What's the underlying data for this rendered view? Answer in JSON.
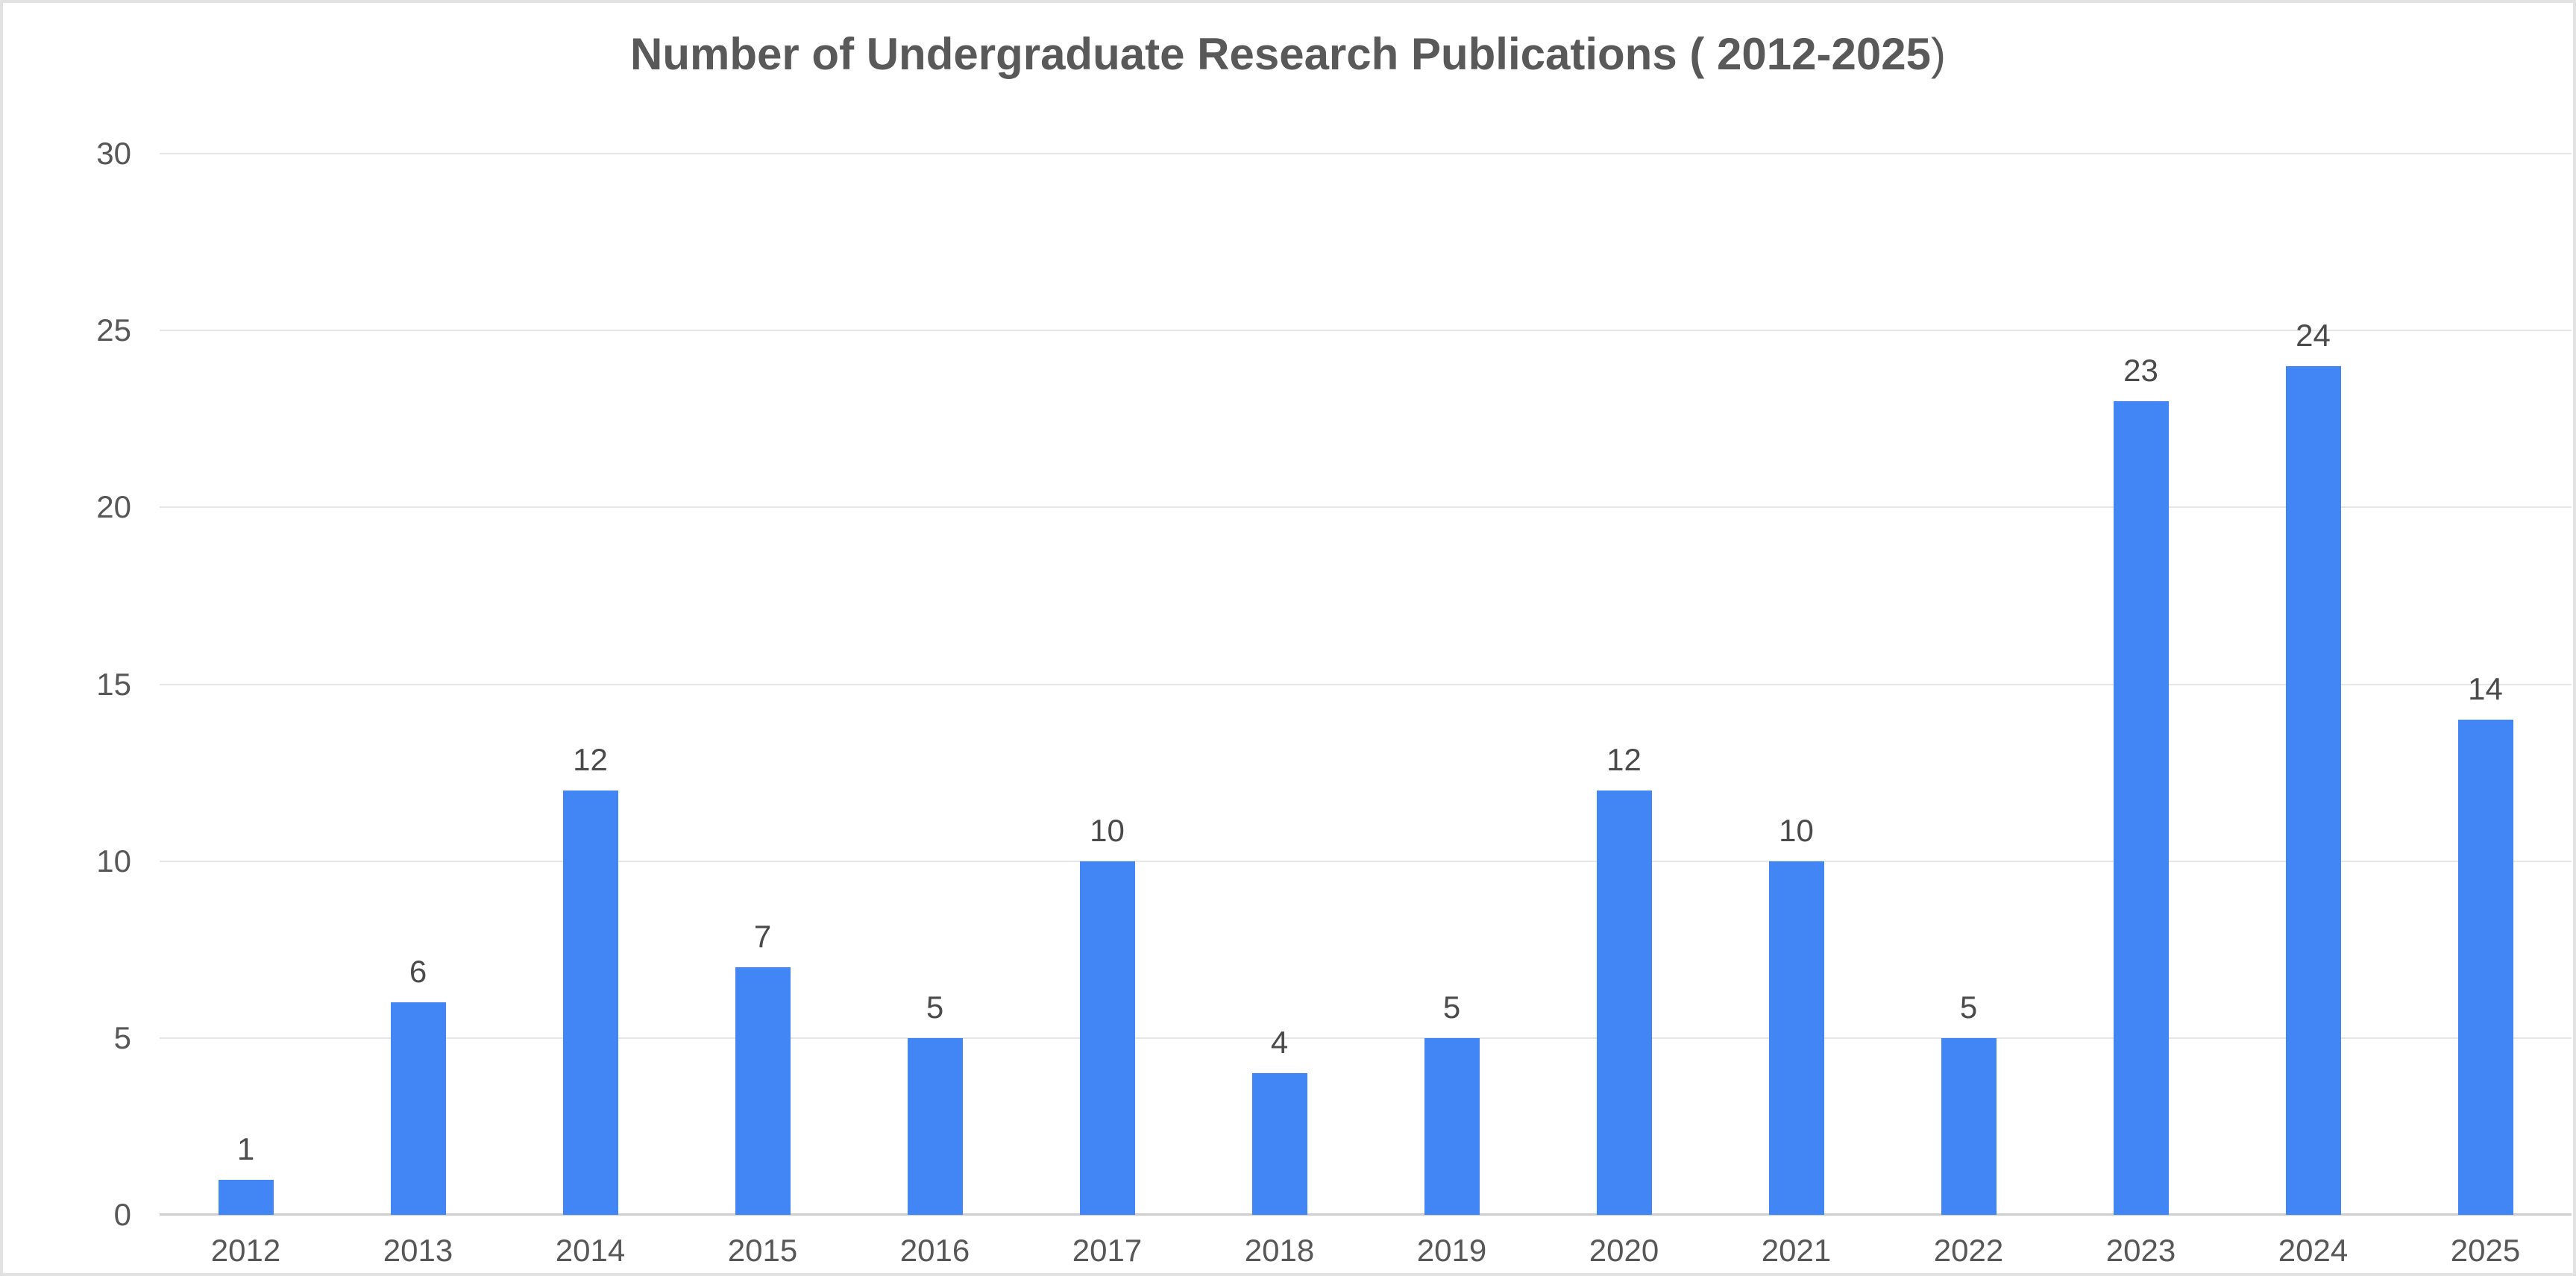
{
  "title": {
    "main": "Number of Undergraduate Research Publications ( 2012-2025",
    "suffix": ")"
  },
  "chart_data": {
    "type": "bar",
    "title": "Number of Undergraduate Research Publications ( 2012-2025)",
    "categories": [
      "2012",
      "2013",
      "2014",
      "2015",
      "2016",
      "2017",
      "2018",
      "2019",
      "2020",
      "2021",
      "2022",
      "2023",
      "2024",
      "2025"
    ],
    "values": [
      1,
      6,
      12,
      7,
      5,
      10,
      4,
      5,
      12,
      10,
      5,
      23,
      24,
      14
    ],
    "xlabel": "",
    "ylabel": "",
    "y_ticks": [
      0,
      5,
      10,
      15,
      20,
      25,
      30
    ],
    "ylim": [
      0,
      30
    ],
    "grid": true,
    "legend": "none",
    "bar_color": "#4285f4",
    "grid_color": "#e6e6e6",
    "baseline_color": "#cdcdcd",
    "axis_label_color": "#575757",
    "value_label_color": "#4a4a4a",
    "title_color": "#595959"
  }
}
